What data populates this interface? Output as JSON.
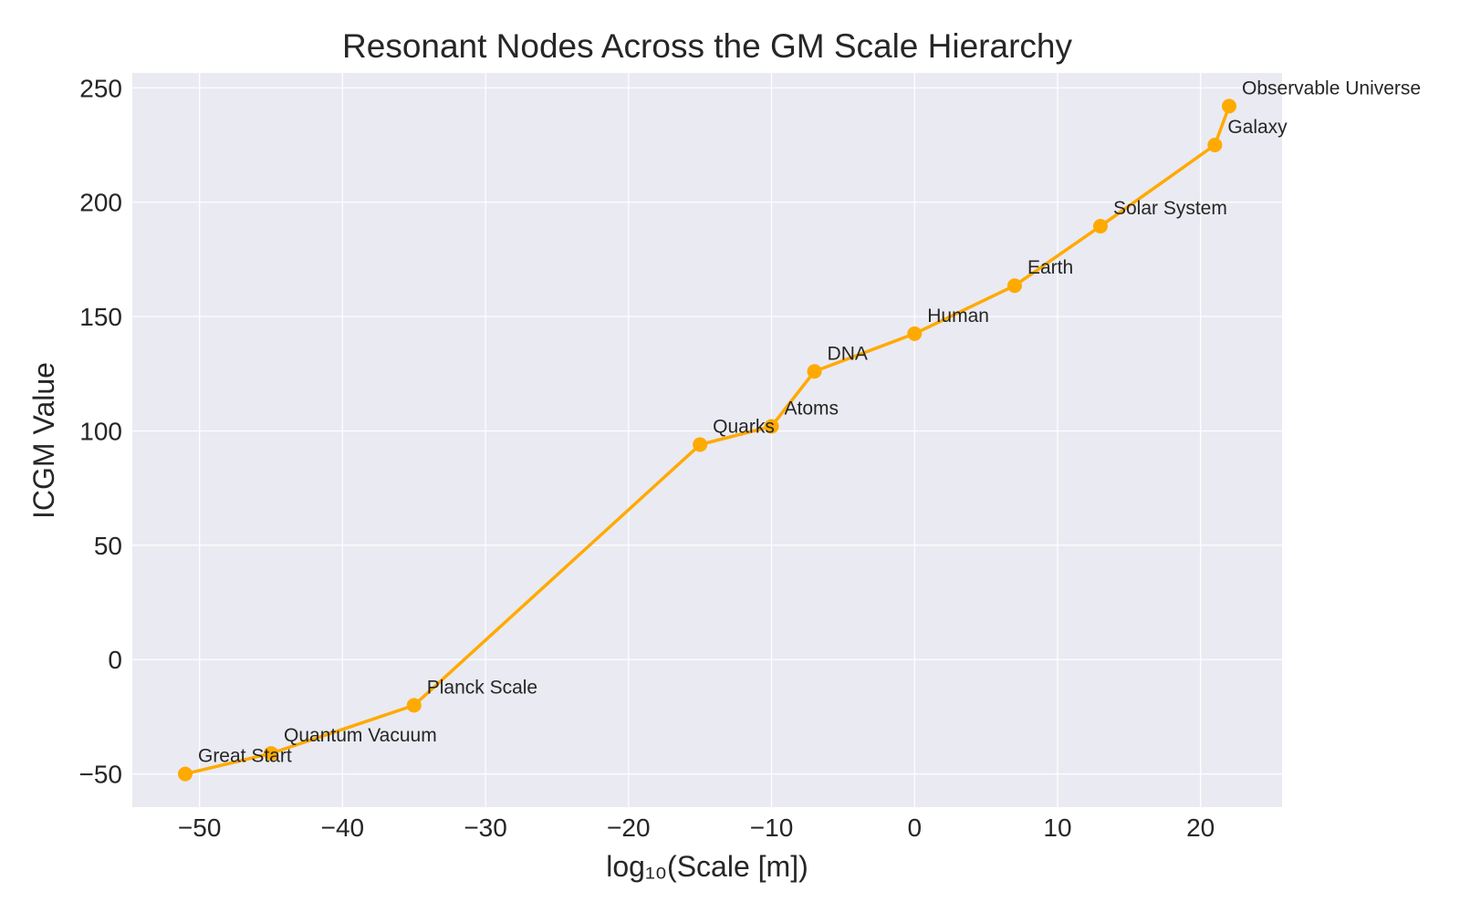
{
  "chart_data": {
    "type": "line",
    "title": "Resonant Nodes Across the GM Scale Hierarchy",
    "xlabel": "log₁₀(Scale [m])",
    "ylabel": "ICGM Value",
    "xlim": [
      -54.7,
      25.7
    ],
    "ylim": [
      -64.5,
      256.5
    ],
    "x_ticks": [
      -50,
      -40,
      -30,
      -20,
      -10,
      0,
      10,
      20
    ],
    "y_ticks": [
      -50,
      0,
      50,
      100,
      150,
      200,
      250
    ],
    "x_tick_labels": [
      "−50",
      "−40",
      "−30",
      "−20",
      "−10",
      "0",
      "10",
      "20"
    ],
    "y_tick_labels": [
      "−50",
      "0",
      "50",
      "100",
      "150",
      "200",
      "250"
    ],
    "grid": true,
    "series": [
      {
        "color": "#ffaa00",
        "points": [
          {
            "label": "Great Start",
            "x": -51,
            "y": -50
          },
          {
            "label": "Quantum Vacuum",
            "x": -45,
            "y": -41
          },
          {
            "label": "Planck Scale",
            "x": -35,
            "y": -20
          },
          {
            "label": "Quarks",
            "x": -15,
            "y": 94
          },
          {
            "label": "Atoms",
            "x": -10,
            "y": 102
          },
          {
            "label": "DNA",
            "x": -7,
            "y": 126
          },
          {
            "label": "Human",
            "x": 0,
            "y": 142.5
          },
          {
            "label": "Earth",
            "x": 7,
            "y": 163.5
          },
          {
            "label": "Solar System",
            "x": 13,
            "y": 189.5
          },
          {
            "label": "Galaxy",
            "x": 21,
            "y": 225
          },
          {
            "label": "Observable Universe",
            "x": 22,
            "y": 242
          }
        ]
      }
    ]
  }
}
